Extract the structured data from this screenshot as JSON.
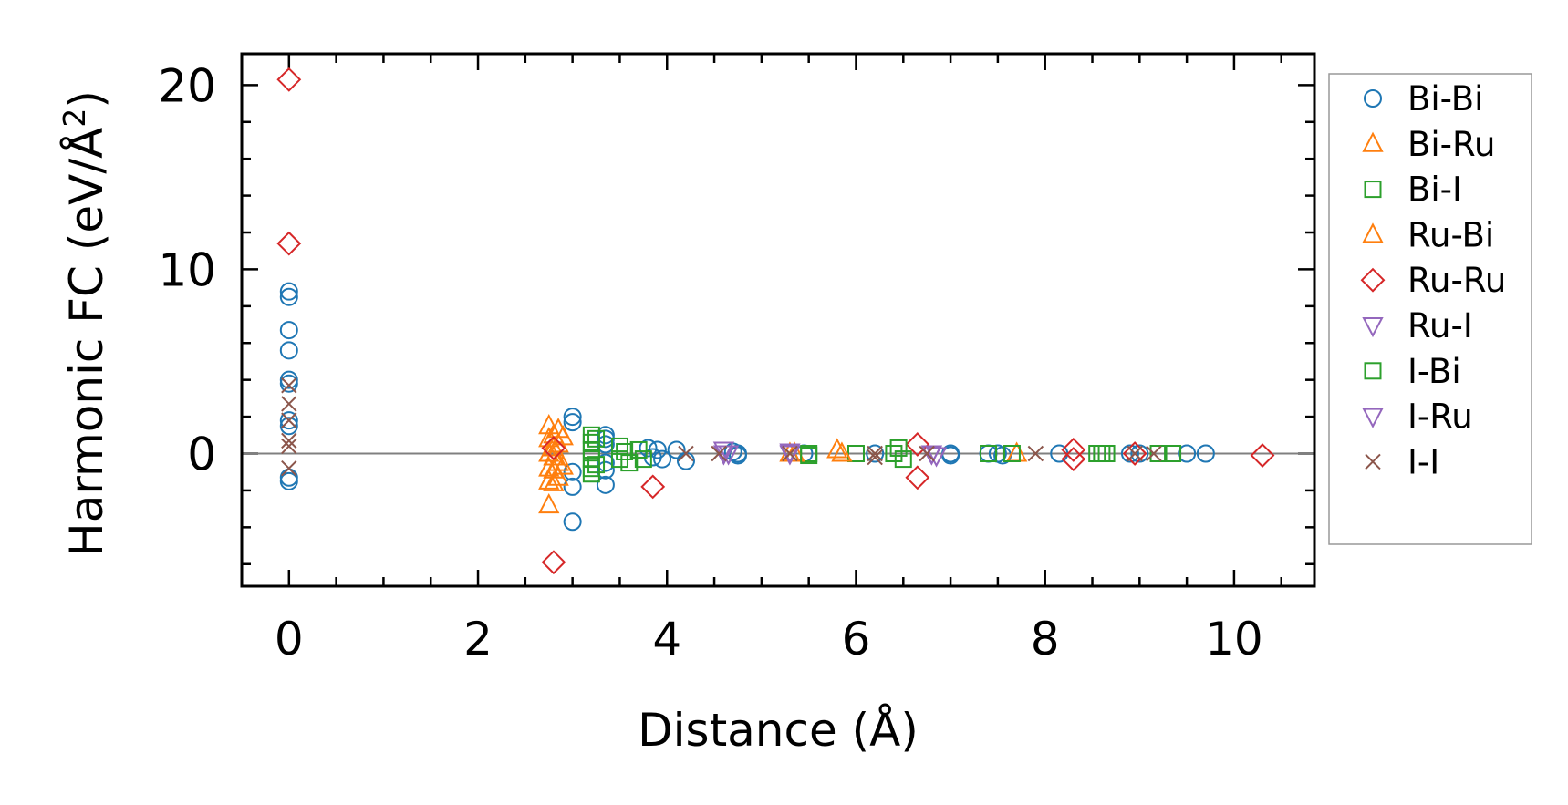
{
  "chart_data": {
    "type": "scatter",
    "title": "",
    "xlabel": "Distance (Å)",
    "ylabel_main": "Harmonic FC (eV/Å",
    "ylabel_sup": "2",
    "ylabel_close": ")",
    "xlim": [
      -0.5,
      10.85
    ],
    "ylim": [
      -7.2,
      21.7
    ],
    "xticks": [
      0,
      2,
      4,
      6,
      8,
      10
    ],
    "xtick_labels": [
      "0",
      "2",
      "4",
      "6",
      "8",
      "10"
    ],
    "yticks": [
      0,
      10,
      20
    ],
    "ytick_labels": [
      "0",
      "10",
      "20"
    ],
    "x_minor_step": 0.5,
    "y_minor_step": 2,
    "zero_line": true,
    "grid": false,
    "legend_position": "outside-right",
    "series": [
      {
        "name": "Bi-Bi",
        "marker": "circle",
        "color": "#1f77b4",
        "points": [
          [
            0,
            8.8
          ],
          [
            0,
            8.5
          ],
          [
            0,
            6.7
          ],
          [
            0,
            5.6
          ],
          [
            0,
            4.0
          ],
          [
            0,
            3.8
          ],
          [
            0,
            1.8
          ],
          [
            0,
            1.5
          ],
          [
            0,
            -1.3
          ],
          [
            0,
            -1.5
          ],
          [
            3.0,
            2.0
          ],
          [
            3.0,
            1.7
          ],
          [
            3.0,
            -1.0
          ],
          [
            3.0,
            -1.8
          ],
          [
            3.0,
            -3.7
          ],
          [
            3.35,
            1.0
          ],
          [
            3.35,
            0.8
          ],
          [
            3.35,
            0.5
          ],
          [
            3.35,
            -0.5
          ],
          [
            3.35,
            -0.9
          ],
          [
            3.35,
            -1.7
          ],
          [
            3.8,
            0.3
          ],
          [
            3.85,
            -0.2
          ],
          [
            3.9,
            0.2
          ],
          [
            3.95,
            -0.3
          ],
          [
            4.1,
            0.2
          ],
          [
            4.2,
            -0.4
          ],
          [
            4.7,
            0.1
          ],
          [
            4.75,
            -0.1
          ],
          [
            4.75,
            0.0
          ],
          [
            5.45,
            0.0
          ],
          [
            6.2,
            0.0
          ],
          [
            7.0,
            0.0
          ],
          [
            7.0,
            -0.1
          ],
          [
            7.4,
            0.0
          ],
          [
            7.5,
            0.0
          ],
          [
            7.55,
            -0.1
          ],
          [
            8.15,
            0.0
          ],
          [
            8.9,
            0.0
          ],
          [
            9.0,
            0.0
          ],
          [
            9.5,
            0.0
          ],
          [
            9.7,
            0.0
          ]
        ]
      },
      {
        "name": "Bi-Ru",
        "marker": "triangle-up",
        "color": "#ff7f0e",
        "points": [
          [
            2.75,
            1.5
          ],
          [
            2.75,
            0.8
          ],
          [
            2.75,
            0.0
          ],
          [
            2.75,
            -0.8
          ],
          [
            2.75,
            -1.5
          ],
          [
            2.75,
            -2.8
          ],
          [
            2.85,
            1.3
          ],
          [
            2.85,
            0.5
          ],
          [
            2.85,
            -0.5
          ],
          [
            2.85,
            -1.3
          ],
          [
            5.3,
            0.0
          ],
          [
            5.8,
            0.2
          ],
          [
            7.7,
            0.0
          ]
        ]
      },
      {
        "name": "Bi-I",
        "marker": "square",
        "color": "#2ca02c",
        "points": [
          [
            3.2,
            1.0
          ],
          [
            3.2,
            0.6
          ],
          [
            3.2,
            0.2
          ],
          [
            3.2,
            -0.3
          ],
          [
            3.2,
            -0.8
          ],
          [
            3.2,
            -1.1
          ],
          [
            3.5,
            0.4
          ],
          [
            3.5,
            -0.3
          ],
          [
            3.7,
            0.2
          ],
          [
            3.75,
            -0.3
          ],
          [
            5.5,
            0.0
          ],
          [
            6.0,
            0.0
          ],
          [
            6.4,
            0.0
          ],
          [
            6.5,
            -0.3
          ],
          [
            7.65,
            0.0
          ],
          [
            8.55,
            0.0
          ],
          [
            8.65,
            0.0
          ],
          [
            9.2,
            0.0
          ],
          [
            9.35,
            0.0
          ]
        ]
      },
      {
        "name": "Ru-Bi",
        "marker": "triangle-up",
        "color": "#ff7f0e",
        "points": [
          [
            2.8,
            1.0
          ],
          [
            2.8,
            0.3
          ],
          [
            2.8,
            -0.2
          ],
          [
            2.8,
            -0.9
          ],
          [
            2.8,
            -1.6
          ],
          [
            2.9,
            0.9
          ],
          [
            2.9,
            -0.7
          ],
          [
            5.35,
            0.0
          ],
          [
            5.85,
            0.0
          ]
        ]
      },
      {
        "name": "Ru-Ru",
        "marker": "diamond",
        "color": "#d62728",
        "points": [
          [
            0,
            20.3
          ],
          [
            0,
            11.4
          ],
          [
            2.8,
            -5.9
          ],
          [
            2.8,
            0.3
          ],
          [
            3.85,
            -1.8
          ],
          [
            6.65,
            0.5
          ],
          [
            6.65,
            -1.3
          ],
          [
            8.3,
            0.2
          ],
          [
            8.3,
            -0.3
          ],
          [
            8.95,
            0.0
          ],
          [
            10.3,
            -0.1
          ]
        ]
      },
      {
        "name": "Ru-I",
        "marker": "triangle-down",
        "color": "#9467bd",
        "points": [
          [
            4.6,
            0.2
          ],
          [
            4.65,
            0.0
          ],
          [
            5.3,
            0.1
          ],
          [
            6.8,
            0.0
          ],
          [
            6.85,
            -0.1
          ]
        ]
      },
      {
        "name": "I-Bi",
        "marker": "square",
        "color": "#2ca02c",
        "points": [
          [
            3.25,
            0.8
          ],
          [
            3.25,
            -0.6
          ],
          [
            3.55,
            0.1
          ],
          [
            3.6,
            -0.5
          ],
          [
            5.5,
            -0.1
          ],
          [
            6.45,
            0.3
          ],
          [
            7.4,
            0.0
          ],
          [
            8.6,
            0.0
          ]
        ]
      },
      {
        "name": "I-Ru",
        "marker": "triangle-down",
        "color": "#9467bd",
        "points": [
          [
            4.6,
            0.0
          ],
          [
            5.3,
            0.0
          ],
          [
            6.8,
            0.0
          ]
        ]
      },
      {
        "name": "I-I",
        "marker": "x",
        "color": "#8c564b",
        "points": [
          [
            0,
            3.7
          ],
          [
            0,
            2.7
          ],
          [
            0,
            1.8
          ],
          [
            0,
            0.7
          ],
          [
            0,
            0.4
          ],
          [
            0,
            -0.8
          ],
          [
            4.2,
            0.0
          ],
          [
            4.55,
            0.0
          ],
          [
            5.3,
            0.0
          ],
          [
            6.2,
            0.0
          ],
          [
            6.2,
            -0.2
          ],
          [
            6.75,
            0.0
          ],
          [
            7.9,
            0.0
          ],
          [
            8.95,
            0.0
          ],
          [
            9.15,
            0.0
          ]
        ]
      }
    ]
  }
}
